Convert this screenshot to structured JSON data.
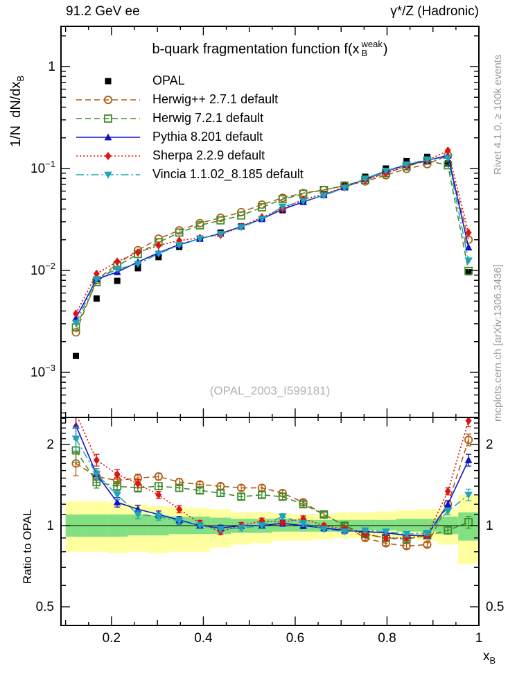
{
  "header": {
    "left": "91.2 GeV ee",
    "right": "γ*/Z (Hadronic)"
  },
  "side_notes": {
    "top_right": "Rivet 4.1.0, ≥ 100k events",
    "bottom_right": "mcplots.cern.ch [arXiv:1306.3436]"
  },
  "watermark": "(OPAL_2003_I599181)",
  "title": {
    "main": "b-quark fragmentation function f(x",
    "sup": "weak",
    "sub": "B",
    "close": ")"
  },
  "axes": {
    "main_y_label": {
      "main": "1/N  dN/dx",
      "sub": "B"
    },
    "ratio_y_label": "Ratio to OPAL",
    "x_label": {
      "main": "x",
      "sub": "B"
    },
    "main_y_ticks": [
      "1",
      "10−1",
      "10−2",
      "10−3"
    ],
    "ratio_y_ticks": [
      "2",
      "1",
      "0.5"
    ],
    "x_ticks": [
      "0.2",
      "0.4",
      "0.6",
      "0.8",
      "1"
    ]
  },
  "chart_data": {
    "type": "scatter",
    "title": "b-quark fragmentation function f(x_B^weak)",
    "xlabel": "x_B",
    "ylabel": "1/N dN/dx_B",
    "ratio_ylabel": "Ratio to OPAL",
    "x_axis_range": [
      0.09,
      1.0
    ],
    "main_y_log_range": [
      0.00036,
      2.48
    ],
    "ratio_y_log_range": [
      0.426,
      2.52
    ],
    "x_ticks_major": [
      0.2,
      0.4,
      0.6,
      0.8,
      1.0
    ],
    "bin_width": 0.045,
    "x_centers": [
      0.1225,
      0.1675,
      0.2125,
      0.2575,
      0.3025,
      0.3475,
      0.3925,
      0.4375,
      0.4825,
      0.5275,
      0.5725,
      0.6175,
      0.6625,
      0.7075,
      0.7525,
      0.7975,
      0.8425,
      0.8875,
      0.9325,
      0.9775
    ],
    "series": [
      {
        "name": "OPAL",
        "slug": "opal",
        "color": "#000000",
        "marker": "square-filled",
        "line": "none",
        "values": [
          0.00145,
          0.0053,
          0.0079,
          0.0105,
          0.0135,
          0.017,
          0.0205,
          0.0235,
          0.027,
          0.032,
          0.039,
          0.047,
          0.056,
          0.068,
          0.083,
          0.1,
          0.118,
          0.13,
          0.112,
          0.0096
        ]
      },
      {
        "name": "Herwig++ 2.7.1 default",
        "slug": "herwigpp",
        "color": "#b35c14",
        "marker": "circle-open",
        "line": "dashed",
        "values": [
          0.00247,
          0.00806,
          0.0116,
          0.0158,
          0.0205,
          0.0247,
          0.0291,
          0.0329,
          0.0373,
          0.0442,
          0.0515,
          0.0573,
          0.0616,
          0.068,
          0.0747,
          0.086,
          0.0991,
          0.1105,
          0.1344,
          0.02
        ],
        "ratio": [
          1.7,
          1.52,
          1.47,
          1.5,
          1.52,
          1.45,
          1.42,
          1.4,
          1.38,
          1.38,
          1.32,
          1.22,
          1.1,
          1.0,
          0.9,
          0.86,
          0.84,
          0.85,
          1.2,
          2.08
        ]
      },
      {
        "name": "Herwig 7.2.1 default",
        "slug": "herwig7",
        "color": "#3d8c28",
        "marker": "square-open",
        "line": "dashed",
        "values": [
          0.00276,
          0.00769,
          0.0111,
          0.0145,
          0.0189,
          0.0235,
          0.0277,
          0.031,
          0.0346,
          0.0416,
          0.0499,
          0.0564,
          0.0616,
          0.068,
          0.0772,
          0.09,
          0.105,
          0.1196,
          0.1075,
          0.0099
        ],
        "ratio": [
          1.9,
          1.45,
          1.4,
          1.38,
          1.4,
          1.38,
          1.35,
          1.32,
          1.28,
          1.3,
          1.28,
          1.2,
          1.1,
          1.0,
          0.93,
          0.9,
          0.89,
          0.92,
          0.96,
          1.03
        ]
      },
      {
        "name": "Pythia 8.201 default",
        "slug": "pythia",
        "color": "#1212cc",
        "marker": "triangle-up-filled",
        "line": "solid",
        "values": [
          0.00341,
          0.00822,
          0.00964,
          0.0121,
          0.0149,
          0.0179,
          0.0205,
          0.023,
          0.027,
          0.032,
          0.0398,
          0.047,
          0.0549,
          0.0653,
          0.0789,
          0.094,
          0.1086,
          0.1196,
          0.1344,
          0.0168
        ],
        "ratio": [
          2.35,
          1.55,
          1.22,
          1.15,
          1.1,
          1.05,
          1.0,
          0.98,
          1.0,
          1.0,
          1.02,
          1.0,
          0.98,
          0.96,
          0.95,
          0.94,
          0.92,
          0.92,
          1.2,
          1.75
        ]
      },
      {
        "name": "Sherpa 2.2.9 default",
        "slug": "sherpa",
        "color": "#e01212",
        "marker": "diamond-filled",
        "line": "dotted",
        "values": [
          0.00377,
          0.00928,
          0.0122,
          0.015,
          0.0176,
          0.0196,
          0.0209,
          0.0223,
          0.027,
          0.0333,
          0.0402,
          0.0498,
          0.056,
          0.066,
          0.0772,
          0.09,
          0.1062,
          0.1196,
          0.15,
          0.0235
        ],
        "ratio": [
          2.6,
          1.75,
          1.55,
          1.43,
          1.3,
          1.15,
          1.02,
          0.95,
          1.0,
          1.04,
          1.03,
          1.06,
          1.0,
          0.97,
          0.93,
          0.9,
          0.9,
          0.92,
          1.34,
          2.45
        ]
      },
      {
        "name": "Vincia 1.1.02_8.185 default",
        "slug": "vincia",
        "color": "#1da4ba",
        "marker": "triangle-down-filled",
        "line": "dashdot",
        "values": [
          0.00305,
          0.00822,
          0.0103,
          0.0116,
          0.0146,
          0.0177,
          0.0205,
          0.0228,
          0.0265,
          0.032,
          0.0421,
          0.0479,
          0.0543,
          0.0646,
          0.0797,
          0.095,
          0.1097,
          0.1222,
          0.1266,
          0.0125
        ],
        "ratio": [
          2.1,
          1.55,
          1.3,
          1.1,
          1.08,
          1.04,
          1.0,
          0.97,
          0.98,
          1.0,
          1.08,
          1.02,
          0.97,
          0.95,
          0.96,
          0.95,
          0.93,
          0.94,
          1.13,
          1.3
        ]
      }
    ],
    "ratio_stat_err_frac": [
      0.1,
      0.05,
      0.04,
      0.035,
      0.03,
      0.03,
      0.025,
      0.025,
      0.025,
      0.025,
      0.025,
      0.025,
      0.02,
      0.02,
      0.02,
      0.02,
      0.02,
      0.02,
      0.03,
      0.05
    ],
    "ratio_bands": {
      "yellow_color": "#ffffa0",
      "green_color": "#82e082",
      "yellow": [
        [
          0.8,
          1.23
        ],
        [
          0.8,
          1.23
        ],
        [
          0.79,
          1.22
        ],
        [
          0.8,
          1.2
        ],
        [
          0.79,
          1.18
        ],
        [
          0.8,
          1.17
        ],
        [
          0.8,
          1.16
        ],
        [
          0.83,
          1.15
        ],
        [
          0.85,
          1.12
        ],
        [
          0.86,
          1.12
        ],
        [
          0.88,
          1.11
        ],
        [
          0.88,
          1.1
        ],
        [
          0.89,
          1.1
        ],
        [
          0.9,
          1.12
        ],
        [
          0.9,
          1.12
        ],
        [
          0.9,
          1.13
        ],
        [
          0.9,
          1.14
        ],
        [
          0.88,
          1.15
        ],
        [
          0.85,
          1.15
        ],
        [
          0.72,
          1.3
        ]
      ],
      "green": [
        [
          0.91,
          1.1
        ],
        [
          0.91,
          1.1
        ],
        [
          0.91,
          1.1
        ],
        [
          0.92,
          1.1
        ],
        [
          0.92,
          1.09
        ],
        [
          0.93,
          1.08
        ],
        [
          0.93,
          1.08
        ],
        [
          0.93,
          1.07
        ],
        [
          0.94,
          1.06
        ],
        [
          0.94,
          1.06
        ],
        [
          0.95,
          1.06
        ],
        [
          0.95,
          1.05
        ],
        [
          0.95,
          1.05
        ],
        [
          0.95,
          1.05
        ],
        [
          0.96,
          1.05
        ],
        [
          0.96,
          1.05
        ],
        [
          0.95,
          1.06
        ],
        [
          0.95,
          1.06
        ],
        [
          0.93,
          1.08
        ],
        [
          0.88,
          1.12
        ]
      ]
    },
    "legend_position": "top-left-inside",
    "grid": false
  }
}
